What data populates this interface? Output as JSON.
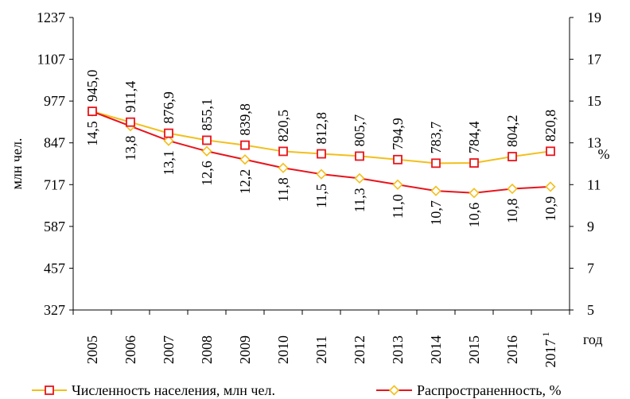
{
  "chart_data": {
    "type": "line",
    "xlabel": "год",
    "ylabel_left": "млн чел.",
    "ylabel_right": "%",
    "x": [
      "2005",
      "2006",
      "2007",
      "2008",
      "2009",
      "2010",
      "2011",
      "2012",
      "2013",
      "2014",
      "2015",
      "2016",
      "2017"
    ],
    "x_last_superscript": "1",
    "yticks_left": [
      "327",
      "457",
      "587",
      "717",
      "847",
      "977",
      "1107",
      "1237"
    ],
    "ylim_left": [
      327,
      1237
    ],
    "yticks_right": [
      "5",
      "7",
      "9",
      "11",
      "13",
      "15",
      "17",
      "19"
    ],
    "ylim_right": [
      5,
      19
    ],
    "grid": false,
    "legend_position": "bottom",
    "series": [
      {
        "name": "Численность населения, млн чел.",
        "axis": "left",
        "color": "#f2bf1c",
        "marker": "square",
        "marker_color": "#e8141c",
        "values": [
          945.0,
          911.4,
          876.9,
          855.1,
          839.8,
          820.5,
          812.8,
          805.7,
          794.9,
          783.7,
          784.4,
          804.2,
          820.8
        ],
        "labels": [
          "945,0",
          "911,4",
          "876,9",
          "855,1",
          "839,8",
          "820,5",
          "812,8",
          "805,7",
          "794,9",
          "783,7",
          "784,4",
          "804,2",
          "820,8"
        ]
      },
      {
        "name": "Распространенность, %",
        "axis": "right",
        "color": "#e8141c",
        "marker": "diamond",
        "marker_color": "#f2bf1c",
        "values": [
          14.5,
          13.8,
          13.1,
          12.6,
          12.2,
          11.8,
          11.5,
          11.3,
          11.0,
          10.7,
          10.6,
          10.8,
          10.9
        ],
        "labels": [
          "14,5",
          "13,8",
          "13,1",
          "12,6",
          "12,2",
          "11,8",
          "11,5",
          "11,3",
          "11,0",
          "10,7",
          "10,6",
          "10,8",
          "10,9"
        ]
      }
    ]
  }
}
